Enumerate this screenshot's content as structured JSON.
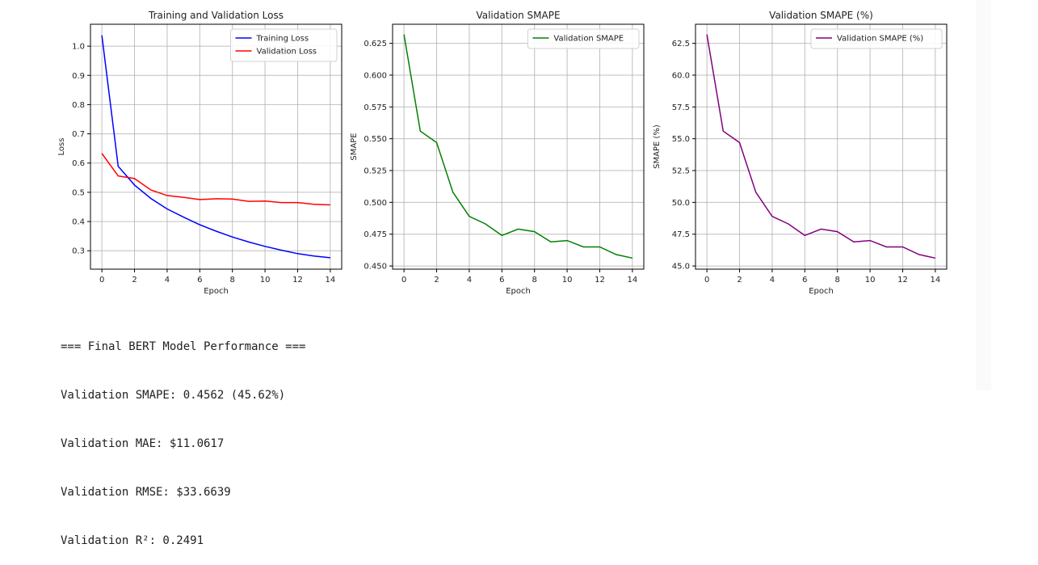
{
  "chart_data": [
    {
      "type": "line",
      "title": "Training and Validation Loss",
      "xlabel": "Epoch",
      "ylabel": "Loss",
      "x": [
        0,
        1,
        2,
        3,
        4,
        5,
        6,
        7,
        8,
        9,
        10,
        11,
        12,
        13,
        14
      ],
      "xticks": [
        0,
        2,
        4,
        6,
        8,
        10,
        12,
        14
      ],
      "yticks": [
        0.3,
        0.4,
        0.5,
        0.6,
        0.7,
        0.8,
        0.9,
        1.0
      ],
      "ytick_labels": [
        "0.3",
        "0.4",
        "0.5",
        "0.6",
        "0.7",
        "0.8",
        "0.9",
        "1.0"
      ],
      "xlim": [
        -0.7,
        14.7
      ],
      "ylim": [
        0.237,
        1.075
      ],
      "grid": true,
      "legend_position": "upper right",
      "series": [
        {
          "name": "Training Loss",
          "color": "#0000ff",
          "values": [
            1.037,
            0.589,
            0.525,
            0.479,
            0.443,
            0.415,
            0.389,
            0.367,
            0.347,
            0.33,
            0.315,
            0.302,
            0.29,
            0.282,
            0.276
          ]
        },
        {
          "name": "Validation Loss",
          "color": "#ff0000",
          "values": [
            0.633,
            0.556,
            0.547,
            0.508,
            0.489,
            0.483,
            0.475,
            0.478,
            0.477,
            0.469,
            0.47,
            0.465,
            0.465,
            0.459,
            0.457
          ]
        }
      ]
    },
    {
      "type": "line",
      "title": "Validation SMAPE",
      "xlabel": "Epoch",
      "ylabel": "SMAPE",
      "x": [
        0,
        1,
        2,
        3,
        4,
        5,
        6,
        7,
        8,
        9,
        10,
        11,
        12,
        13,
        14
      ],
      "xticks": [
        0,
        2,
        4,
        6,
        8,
        10,
        12,
        14
      ],
      "yticks": [
        0.45,
        0.475,
        0.5,
        0.525,
        0.55,
        0.575,
        0.6,
        0.625
      ],
      "ytick_labels": [
        "0.450",
        "0.475",
        "0.500",
        "0.525",
        "0.550",
        "0.575",
        "0.600",
        "0.625"
      ],
      "xlim": [
        -0.7,
        14.7
      ],
      "ylim": [
        0.4475,
        0.64
      ],
      "grid": true,
      "legend_position": "upper right",
      "series": [
        {
          "name": "Validation SMAPE",
          "color": "#008000",
          "values": [
            0.632,
            0.556,
            0.547,
            0.508,
            0.489,
            0.483,
            0.474,
            0.479,
            0.477,
            0.469,
            0.47,
            0.465,
            0.465,
            0.459,
            0.4562
          ]
        }
      ]
    },
    {
      "type": "line",
      "title": "Validation SMAPE (%)",
      "xlabel": "Epoch",
      "ylabel": "SMAPE (%)",
      "x": [
        0,
        1,
        2,
        3,
        4,
        5,
        6,
        7,
        8,
        9,
        10,
        11,
        12,
        13,
        14
      ],
      "xticks": [
        0,
        2,
        4,
        6,
        8,
        10,
        12,
        14
      ],
      "yticks": [
        45.0,
        47.5,
        50.0,
        52.5,
        55.0,
        57.5,
        60.0,
        62.5
      ],
      "ytick_labels": [
        "45.0",
        "47.5",
        "50.0",
        "52.5",
        "55.0",
        "57.5",
        "60.0",
        "62.5"
      ],
      "xlim": [
        -0.7,
        14.7
      ],
      "ylim": [
        44.75,
        64.0
      ],
      "grid": true,
      "legend_position": "upper right",
      "series": [
        {
          "name": "Validation SMAPE (%)",
          "color": "#800080",
          "values": [
            63.2,
            55.6,
            54.7,
            50.8,
            48.9,
            48.3,
            47.4,
            47.9,
            47.7,
            46.9,
            47.0,
            46.5,
            46.5,
            45.9,
            45.62
          ]
        }
      ]
    }
  ],
  "output": {
    "lines": [
      "=== Final BERT Model Performance ===",
      "Validation SMAPE: 0.4562 (45.62%)",
      "Validation MAE: $11.0617",
      "Validation RMSE: $33.6639",
      "Validation R²: 0.2491"
    ]
  }
}
